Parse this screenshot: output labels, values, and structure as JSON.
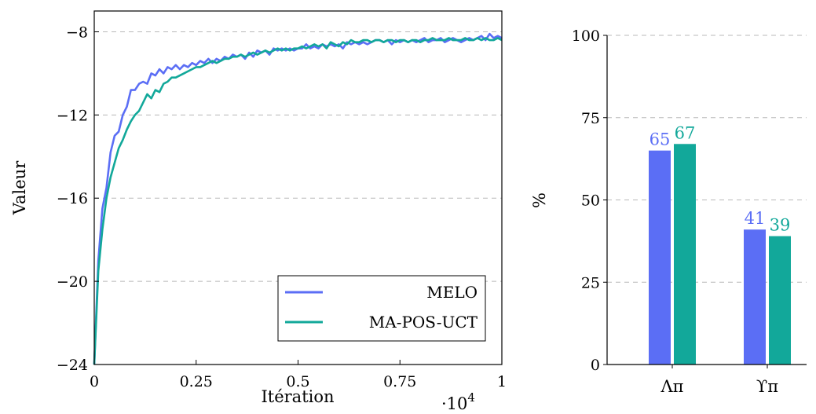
{
  "colors": {
    "melo": "#5b6ef5",
    "mapos": "#12a89a",
    "grid": "#b8b8b8"
  },
  "chart_data": [
    {
      "type": "line",
      "xlabel": "Itération",
      "ylabel": "Valeur",
      "x_multiplier_label": "·10",
      "x_multiplier_exp": "4",
      "xlim": [
        0,
        1
      ],
      "ylim": [
        -24,
        -7
      ],
      "xticks": [
        0,
        0.25,
        0.5,
        0.75,
        1
      ],
      "xtick_labels": [
        "0",
        "0.25",
        "0.5",
        "0.75",
        "1"
      ],
      "yticks": [
        -24,
        -20,
        -16,
        -12,
        -8
      ],
      "ytick_labels": [
        "−24",
        "−20",
        "−16",
        "−12",
        "−8"
      ],
      "grid": "horizontal dashed",
      "legend_position": "bottom-right",
      "series": [
        {
          "name": "MELO",
          "color_key": "melo",
          "points": [
            [
              0.0,
              -24.0
            ],
            [
              0.01,
              -19.0
            ],
            [
              0.02,
              -16.5
            ],
            [
              0.03,
              -15.5
            ],
            [
              0.04,
              -13.8
            ],
            [
              0.05,
              -13.0
            ],
            [
              0.06,
              -12.8
            ],
            [
              0.07,
              -12.0
            ],
            [
              0.08,
              -11.6
            ],
            [
              0.09,
              -10.8
            ],
            [
              0.1,
              -10.8
            ],
            [
              0.11,
              -10.5
            ],
            [
              0.12,
              -10.4
            ],
            [
              0.13,
              -10.5
            ],
            [
              0.14,
              -10.0
            ],
            [
              0.15,
              -10.1
            ],
            [
              0.16,
              -9.8
            ],
            [
              0.17,
              -10.0
            ],
            [
              0.18,
              -9.7
            ],
            [
              0.19,
              -9.8
            ],
            [
              0.2,
              -9.6
            ],
            [
              0.21,
              -9.8
            ],
            [
              0.22,
              -9.6
            ],
            [
              0.23,
              -9.7
            ],
            [
              0.24,
              -9.5
            ],
            [
              0.25,
              -9.6
            ],
            [
              0.26,
              -9.4
            ],
            [
              0.27,
              -9.5
            ],
            [
              0.28,
              -9.3
            ],
            [
              0.29,
              -9.5
            ],
            [
              0.3,
              -9.3
            ],
            [
              0.31,
              -9.4
            ],
            [
              0.32,
              -9.2
            ],
            [
              0.33,
              -9.3
            ],
            [
              0.34,
              -9.1
            ],
            [
              0.35,
              -9.2
            ],
            [
              0.36,
              -9.1
            ],
            [
              0.37,
              -9.3
            ],
            [
              0.38,
              -9.0
            ],
            [
              0.39,
              -9.2
            ],
            [
              0.4,
              -8.9
            ],
            [
              0.41,
              -9.0
            ],
            [
              0.42,
              -8.9
            ],
            [
              0.43,
              -9.1
            ],
            [
              0.44,
              -8.8
            ],
            [
              0.45,
              -8.9
            ],
            [
              0.46,
              -8.8
            ],
            [
              0.47,
              -8.9
            ],
            [
              0.48,
              -8.8
            ],
            [
              0.49,
              -8.9
            ],
            [
              0.5,
              -8.8
            ],
            [
              0.51,
              -8.8
            ],
            [
              0.52,
              -8.6
            ],
            [
              0.53,
              -8.8
            ],
            [
              0.54,
              -8.7
            ],
            [
              0.55,
              -8.8
            ],
            [
              0.56,
              -8.6
            ],
            [
              0.57,
              -8.7
            ],
            [
              0.58,
              -8.6
            ],
            [
              0.59,
              -8.7
            ],
            [
              0.6,
              -8.6
            ],
            [
              0.61,
              -8.8
            ],
            [
              0.62,
              -8.5
            ],
            [
              0.63,
              -8.6
            ],
            [
              0.64,
              -8.5
            ],
            [
              0.65,
              -8.6
            ],
            [
              0.66,
              -8.5
            ],
            [
              0.67,
              -8.6
            ],
            [
              0.68,
              -8.5
            ],
            [
              0.69,
              -8.4
            ],
            [
              0.7,
              -8.4
            ],
            [
              0.71,
              -8.5
            ],
            [
              0.72,
              -8.4
            ],
            [
              0.73,
              -8.6
            ],
            [
              0.74,
              -8.4
            ],
            [
              0.75,
              -8.5
            ],
            [
              0.76,
              -8.4
            ],
            [
              0.77,
              -8.5
            ],
            [
              0.78,
              -8.4
            ],
            [
              0.79,
              -8.5
            ],
            [
              0.8,
              -8.4
            ],
            [
              0.81,
              -8.3
            ],
            [
              0.82,
              -8.5
            ],
            [
              0.83,
              -8.4
            ],
            [
              0.84,
              -8.4
            ],
            [
              0.85,
              -8.3
            ],
            [
              0.86,
              -8.5
            ],
            [
              0.87,
              -8.4
            ],
            [
              0.88,
              -8.3
            ],
            [
              0.89,
              -8.4
            ],
            [
              0.9,
              -8.5
            ],
            [
              0.91,
              -8.4
            ],
            [
              0.92,
              -8.3
            ],
            [
              0.93,
              -8.4
            ],
            [
              0.94,
              -8.3
            ],
            [
              0.95,
              -8.2
            ],
            [
              0.96,
              -8.4
            ],
            [
              0.97,
              -8.1
            ],
            [
              0.98,
              -8.3
            ],
            [
              0.99,
              -8.2
            ],
            [
              1.0,
              -8.3
            ]
          ]
        },
        {
          "name": "MA-POS-UCT",
          "color_key": "mapos",
          "points": [
            [
              0.0,
              -24.0
            ],
            [
              0.01,
              -19.5
            ],
            [
              0.02,
              -17.5
            ],
            [
              0.03,
              -16.0
            ],
            [
              0.04,
              -15.0
            ],
            [
              0.05,
              -14.3
            ],
            [
              0.06,
              -13.6
            ],
            [
              0.07,
              -13.2
            ],
            [
              0.08,
              -12.7
            ],
            [
              0.09,
              -12.3
            ],
            [
              0.1,
              -12.0
            ],
            [
              0.11,
              -11.8
            ],
            [
              0.12,
              -11.4
            ],
            [
              0.13,
              -11.0
            ],
            [
              0.14,
              -11.2
            ],
            [
              0.15,
              -10.8
            ],
            [
              0.16,
              -10.9
            ],
            [
              0.17,
              -10.5
            ],
            [
              0.18,
              -10.4
            ],
            [
              0.19,
              -10.2
            ],
            [
              0.2,
              -10.2
            ],
            [
              0.21,
              -10.1
            ],
            [
              0.22,
              -10.0
            ],
            [
              0.23,
              -9.9
            ],
            [
              0.24,
              -9.8
            ],
            [
              0.25,
              -9.7
            ],
            [
              0.26,
              -9.7
            ],
            [
              0.27,
              -9.6
            ],
            [
              0.28,
              -9.5
            ],
            [
              0.29,
              -9.4
            ],
            [
              0.3,
              -9.5
            ],
            [
              0.31,
              -9.4
            ],
            [
              0.32,
              -9.3
            ],
            [
              0.33,
              -9.3
            ],
            [
              0.34,
              -9.2
            ],
            [
              0.35,
              -9.2
            ],
            [
              0.36,
              -9.1
            ],
            [
              0.37,
              -9.2
            ],
            [
              0.38,
              -9.1
            ],
            [
              0.39,
              -9.0
            ],
            [
              0.4,
              -9.1
            ],
            [
              0.41,
              -9.0
            ],
            [
              0.42,
              -8.9
            ],
            [
              0.43,
              -9.0
            ],
            [
              0.44,
              -8.9
            ],
            [
              0.45,
              -8.8
            ],
            [
              0.46,
              -8.9
            ],
            [
              0.47,
              -8.8
            ],
            [
              0.48,
              -8.9
            ],
            [
              0.49,
              -8.8
            ],
            [
              0.5,
              -8.8
            ],
            [
              0.51,
              -8.7
            ],
            [
              0.52,
              -8.8
            ],
            [
              0.53,
              -8.7
            ],
            [
              0.54,
              -8.6
            ],
            [
              0.55,
              -8.7
            ],
            [
              0.56,
              -8.6
            ],
            [
              0.57,
              -8.8
            ],
            [
              0.58,
              -8.5
            ],
            [
              0.59,
              -8.6
            ],
            [
              0.6,
              -8.7
            ],
            [
              0.61,
              -8.5
            ],
            [
              0.62,
              -8.6
            ],
            [
              0.63,
              -8.4
            ],
            [
              0.64,
              -8.5
            ],
            [
              0.65,
              -8.5
            ],
            [
              0.66,
              -8.4
            ],
            [
              0.67,
              -8.4
            ],
            [
              0.68,
              -8.5
            ],
            [
              0.69,
              -8.4
            ],
            [
              0.7,
              -8.4
            ],
            [
              0.71,
              -8.5
            ],
            [
              0.72,
              -8.4
            ],
            [
              0.73,
              -8.4
            ],
            [
              0.74,
              -8.5
            ],
            [
              0.75,
              -8.4
            ],
            [
              0.76,
              -8.4
            ],
            [
              0.77,
              -8.5
            ],
            [
              0.78,
              -8.4
            ],
            [
              0.79,
              -8.4
            ],
            [
              0.8,
              -8.5
            ],
            [
              0.81,
              -8.4
            ],
            [
              0.82,
              -8.4
            ],
            [
              0.83,
              -8.3
            ],
            [
              0.84,
              -8.4
            ],
            [
              0.85,
              -8.4
            ],
            [
              0.86,
              -8.4
            ],
            [
              0.87,
              -8.3
            ],
            [
              0.88,
              -8.4
            ],
            [
              0.89,
              -8.4
            ],
            [
              0.9,
              -8.4
            ],
            [
              0.91,
              -8.3
            ],
            [
              0.92,
              -8.4
            ],
            [
              0.93,
              -8.4
            ],
            [
              0.94,
              -8.3
            ],
            [
              0.95,
              -8.4
            ],
            [
              0.96,
              -8.3
            ],
            [
              0.97,
              -8.4
            ],
            [
              0.98,
              -8.4
            ],
            [
              0.99,
              -8.3
            ],
            [
              1.0,
              -8.4
            ]
          ]
        }
      ]
    },
    {
      "type": "bar",
      "ylabel": "%",
      "ylim": [
        0,
        100
      ],
      "yticks": [
        0,
        25,
        50,
        75,
        100
      ],
      "ytick_labels": [
        "0",
        "25",
        "50",
        "75",
        "100"
      ],
      "grid": "horizontal dashed",
      "categories": [
        "Λπ",
        "ϒπ"
      ],
      "series": [
        {
          "color_key": "melo",
          "values": [
            65,
            41
          ],
          "labels": [
            "65",
            "41"
          ]
        },
        {
          "color_key": "mapos",
          "values": [
            67,
            39
          ],
          "labels": [
            "67",
            "39"
          ]
        }
      ]
    }
  ]
}
